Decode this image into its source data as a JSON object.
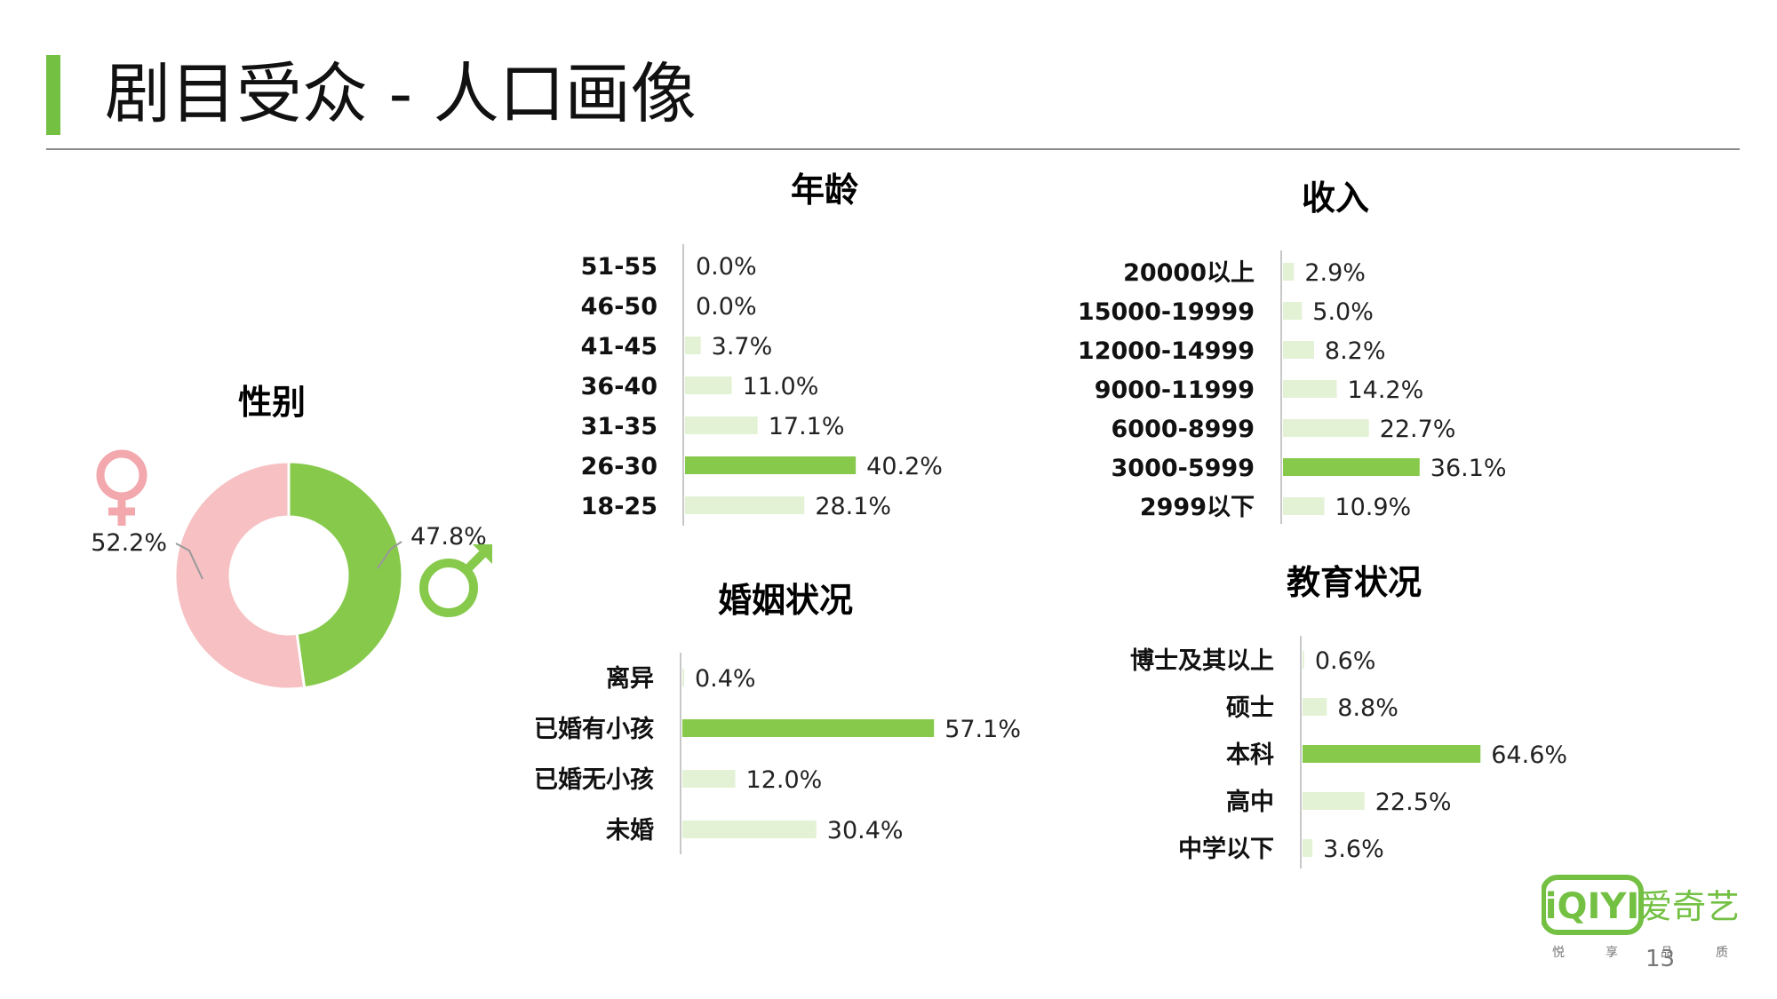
{
  "slide": {
    "title": "剧目受众 - 人口画像",
    "page_number": "13"
  },
  "colors": {
    "accent": "#73c043",
    "bar_highlight": "#86c94b",
    "bar_light": "#e3f2d5",
    "female_pink": "#f7c0c3",
    "female_symbol": "#f2a8ad",
    "male_green": "#86c94b",
    "axis_line": "#c8c8c8"
  },
  "logo": {
    "brand_mark": "iQIYI",
    "brand_name": "爱奇艺",
    "tagline": [
      "悦",
      "享",
      "品",
      "质"
    ]
  },
  "chart_data": [
    {
      "id": "gender",
      "type": "pie",
      "title": "性别",
      "slices": [
        {
          "name": "female",
          "value": 52.2,
          "label": "52.2%",
          "icon": "female-symbol-icon"
        },
        {
          "name": "male",
          "value": 47.8,
          "label": "47.8%",
          "icon": "male-symbol-icon"
        }
      ]
    },
    {
      "id": "age",
      "type": "bar",
      "orientation": "horizontal",
      "title": "年龄",
      "categories": [
        "51-55",
        "46-50",
        "41-45",
        "36-40",
        "31-35",
        "26-30",
        "18-25"
      ],
      "values": [
        0.0,
        0.0,
        3.7,
        11.0,
        17.1,
        40.2,
        28.1
      ],
      "labels": [
        "0.0%",
        "0.0%",
        "3.7%",
        "11.0%",
        "17.1%",
        "40.2%",
        "28.1%"
      ],
      "highlight_index": 5
    },
    {
      "id": "income",
      "type": "bar",
      "orientation": "horizontal",
      "title": "收入",
      "categories": [
        "20000以上",
        "15000-19999",
        "12000-14999",
        "9000-11999",
        "6000-8999",
        "3000-5999",
        "2999以下"
      ],
      "values": [
        2.9,
        5.0,
        8.2,
        14.2,
        22.7,
        36.1,
        10.9
      ],
      "labels": [
        "2.9%",
        "5.0%",
        "8.2%",
        "14.2%",
        "22.7%",
        "36.1%",
        "10.9%"
      ],
      "highlight_index": 5
    },
    {
      "id": "marital",
      "type": "bar",
      "orientation": "horizontal",
      "title": "婚姻状况",
      "categories": [
        "离异",
        "已婚有小孩",
        "已婚无小孩",
        "未婚"
      ],
      "values": [
        0.4,
        57.1,
        12.0,
        30.4
      ],
      "labels": [
        "0.4%",
        "57.1%",
        "12.0%",
        "30.4%"
      ],
      "highlight_index": 1
    },
    {
      "id": "education",
      "type": "bar",
      "orientation": "horizontal",
      "title": "教育状况",
      "categories": [
        "博士及其以上",
        "硕士",
        "本科",
        "高中",
        "中学以下"
      ],
      "values": [
        0.6,
        8.8,
        64.6,
        22.5,
        3.6
      ],
      "labels": [
        "0.6%",
        "8.8%",
        "64.6%",
        "22.5%",
        "3.6%"
      ],
      "highlight_index": 2
    }
  ]
}
